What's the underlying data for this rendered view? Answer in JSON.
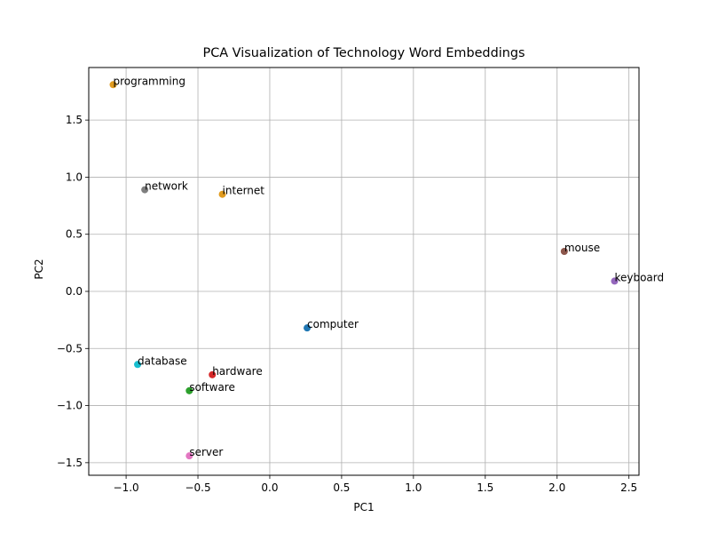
{
  "chart_data": {
    "type": "scatter",
    "title": "PCA Visualization of Technology Word Embeddings",
    "xlabel": "PC1",
    "ylabel": "PC2",
    "xlim": [
      -1.26,
      2.57
    ],
    "ylim": [
      -1.61,
      1.96
    ],
    "xticks": [
      -1.0,
      -0.5,
      0.0,
      0.5,
      1.0,
      1.5,
      2.0,
      2.5
    ],
    "xtick_labels": [
      "−1.0",
      "−0.5",
      "0.0",
      "0.5",
      "1.0",
      "1.5",
      "2.0",
      "2.5"
    ],
    "yticks": [
      -1.5,
      -1.0,
      -0.5,
      0.0,
      0.5,
      1.0,
      1.5
    ],
    "ytick_labels": [
      "−1.5",
      "−1.0",
      "−0.5",
      "0.0",
      "0.5",
      "1.0",
      "1.5"
    ],
    "grid": true,
    "points": [
      {
        "label": "computer",
        "x": 0.26,
        "y": -0.32,
        "color": "#1f77b4"
      },
      {
        "label": "internet",
        "x": -0.33,
        "y": 0.85,
        "color": "#e19b1e"
      },
      {
        "label": "software",
        "x": -0.56,
        "y": -0.87,
        "color": "#2ca02c"
      },
      {
        "label": "hardware",
        "x": -0.4,
        "y": -0.73,
        "color": "#d62728"
      },
      {
        "label": "keyboard",
        "x": 2.4,
        "y": 0.09,
        "color": "#9467bd"
      },
      {
        "label": "mouse",
        "x": 2.05,
        "y": 0.35,
        "color": "#8c564b"
      },
      {
        "label": "server",
        "x": -0.56,
        "y": -1.44,
        "color": "#e377c2"
      },
      {
        "label": "network",
        "x": -0.87,
        "y": 0.89,
        "color": "#7f7f7f"
      },
      {
        "label": "programming",
        "x": -1.09,
        "y": 1.81,
        "color": "#e19b1e"
      },
      {
        "label": "database",
        "x": -0.92,
        "y": -0.64,
        "color": "#17becf"
      }
    ]
  }
}
